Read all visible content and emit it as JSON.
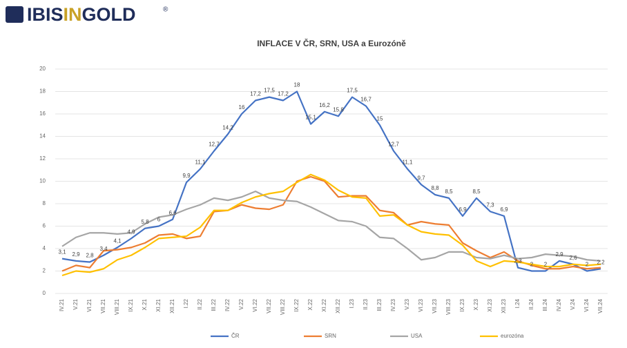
{
  "logo": {
    "parts": [
      "IBIS",
      "IN",
      "GOLD"
    ],
    "mark": "®"
  },
  "chart_data": {
    "type": "line",
    "title": "INFLACE V ČR, SRN, USA a Eurozóně",
    "categories": [
      "IV.21",
      "V.21",
      "VI.21",
      "VII.21",
      "VIII.21",
      "IX.21",
      "X.21",
      "XI.21",
      "XII.21",
      "I.22",
      "II.22",
      "III.22",
      "IV.22",
      "V.22",
      "VI.22",
      "VII.22",
      "VIII.22",
      "IX.22",
      "X.22",
      "XI.22",
      "XII.22",
      "I.23",
      "II.23",
      "III.23",
      "IV.23",
      "V.23",
      "VI.23",
      "VII.23",
      "VIII.23",
      "IX.23",
      "X.23",
      "XI.23",
      "XII.23",
      "I.24",
      "II.24",
      "III.24",
      "IV.24",
      "V.24",
      "VI.24",
      "VII.24"
    ],
    "series": [
      {
        "name": "ČR",
        "color": "#4472c4",
        "values": [
          3.1,
          2.9,
          2.8,
          3.4,
          4.1,
          4.9,
          5.8,
          6,
          6.6,
          9.9,
          11.1,
          12.7,
          14.2,
          16,
          17.2,
          17.5,
          17.2,
          18,
          15.1,
          16.2,
          15.8,
          17.5,
          16.7,
          15,
          12.7,
          11.1,
          9.7,
          8.8,
          8.5,
          6.9,
          8.5,
          7.3,
          6.9,
          2.3,
          2,
          2,
          2.9,
          2.6,
          2,
          2.2
        ],
        "value_labels": [
          "3,1",
          "2,9",
          "2,8",
          "3,4",
          "4,1",
          "4,9",
          "5,8",
          "6",
          "6,6",
          "9,9",
          "11,1",
          "12,7",
          "14,2",
          "16",
          "17,2",
          "17,5",
          "17,2",
          "18",
          "15,1",
          "16,2",
          "15,8",
          "17,5",
          "16,7",
          "15",
          "12,7",
          "11,1",
          "9,7",
          "8,8",
          "8,5",
          "6,9",
          "8,5",
          "7,3",
          "6,9",
          "2,3",
          "2",
          "2",
          "2,9",
          "2,6",
          "2",
          "2,2"
        ]
      },
      {
        "name": "SRN",
        "color": "#ed7d31",
        "values": [
          2,
          2.5,
          2.3,
          3.8,
          3.9,
          4.1,
          4.5,
          5.2,
          5.3,
          4.9,
          5.1,
          7.3,
          7.4,
          7.9,
          7.6,
          7.5,
          7.9,
          10,
          10.4,
          10,
          8.6,
          8.7,
          8.7,
          7.4,
          7.2,
          6.1,
          6.4,
          6.2,
          6.1,
          4.5,
          3.8,
          3.2,
          3.7,
          2.9,
          2.5,
          2.2,
          2.2,
          2.4,
          2.2,
          2.3
        ]
      },
      {
        "name": "USA",
        "color": "#a5a5a5",
        "values": [
          4.2,
          5,
          5.4,
          5.4,
          5.3,
          5.4,
          6.2,
          6.8,
          7,
          7.5,
          7.9,
          8.5,
          8.3,
          8.6,
          9.1,
          8.5,
          8.3,
          8.2,
          7.7,
          7.1,
          6.5,
          6.4,
          6,
          5,
          4.9,
          4,
          3,
          3.2,
          3.7,
          3.7,
          3.2,
          3.1,
          3.4,
          3.1,
          3.2,
          3.5,
          3.4,
          3.3,
          3,
          2.9
        ]
      },
      {
        "name": "eurozóna",
        "color": "#ffc000",
        "values": [
          1.6,
          2,
          1.9,
          2.2,
          3,
          3.4,
          4.1,
          4.9,
          5,
          5.1,
          5.9,
          7.4,
          7.4,
          8.1,
          8.6,
          8.9,
          9.1,
          9.9,
          10.6,
          10.1,
          9.2,
          8.6,
          8.5,
          6.9,
          7,
          6.1,
          5.5,
          5.3,
          5.2,
          4.3,
          2.9,
          2.4,
          2.9,
          2.8,
          2.6,
          2.4,
          2.4,
          2.6,
          2.5,
          2.6
        ]
      }
    ],
    "ylim": [
      0,
      20
    ],
    "yticks": [
      0,
      2,
      4,
      6,
      8,
      10,
      12,
      14,
      16,
      18,
      20
    ],
    "grid": true,
    "legend": "bottom"
  }
}
